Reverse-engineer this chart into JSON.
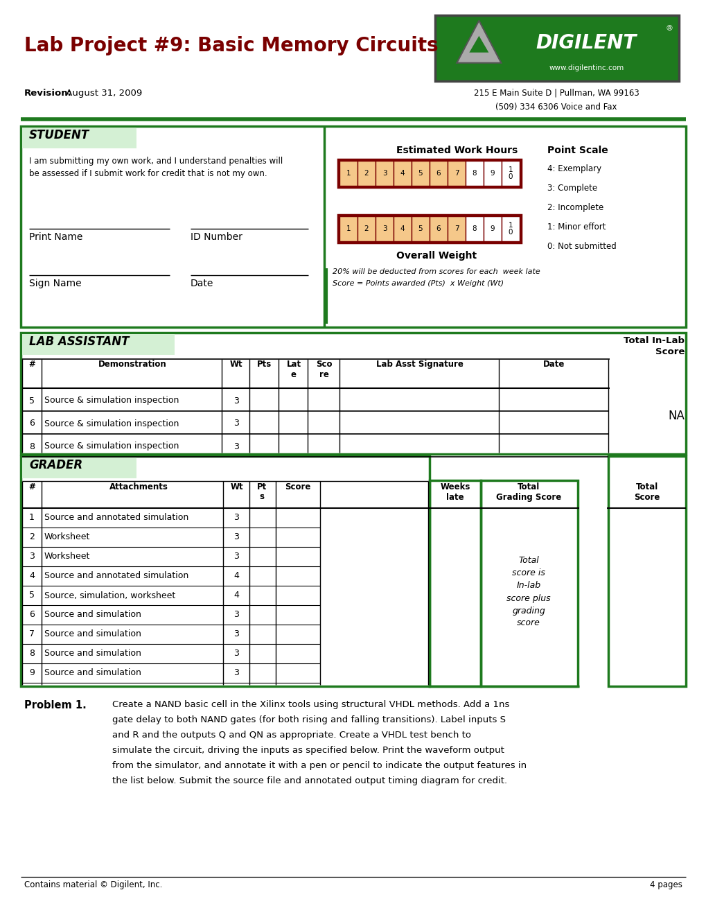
{
  "title": "Lab Project #9: Basic Memory Circuits",
  "revision_bold": "Revision:",
  "revision_rest": " August 31, 2009",
  "address_line1": "215 E Main Suite D | Pullman, WA 99163",
  "address_line2": "(509) 334 6306 Voice and Fax",
  "title_color": "#8B0000",
  "green_color": "#1e7a1e",
  "light_green_bg": "#d4f0d4",
  "orange_fill": "#f5c88a",
  "dark_red": "#7a0000",
  "student_text_line1": "I am submitting my own work, and I understand penalties will",
  "student_text_line2": "be assessed if I submit work for credit that is not my own.",
  "point_scale": [
    "4: Exemplary",
    "3: Complete",
    "2: Incomplete",
    "1: Minor effort",
    "0: Not submitted"
  ],
  "overall_weight_line1": "20% will be deducted from scores for each  week late",
  "overall_weight_line2": "Score = Points awarded (Pts)  x Weight (Wt)",
  "lab_rows": [
    {
      "num": "5",
      "demo": "Source & simulation inspection",
      "wt": "3"
    },
    {
      "num": "6",
      "demo": "Source & simulation inspection",
      "wt": "3"
    },
    {
      "num": "8",
      "demo": "Source & simulation inspection",
      "wt": "3"
    }
  ],
  "grader_rows": [
    {
      "num": "1",
      "attach": "Source and annotated simulation",
      "wt": "3"
    },
    {
      "num": "2",
      "attach": "Worksheet",
      "wt": "3"
    },
    {
      "num": "3",
      "attach": "Worksheet",
      "wt": "3"
    },
    {
      "num": "4",
      "attach": "Source and annotated simulation",
      "wt": "4"
    },
    {
      "num": "5",
      "attach": "Source, simulation, worksheet",
      "wt": "4"
    },
    {
      "num": "6",
      "attach": "Source and simulation",
      "wt": "3"
    },
    {
      "num": "7",
      "attach": "Source and simulation",
      "wt": "3"
    },
    {
      "num": "8",
      "attach": "Source and simulation",
      "wt": "3"
    },
    {
      "num": "9",
      "attach": "Source and simulation",
      "wt": "3"
    }
  ],
  "problem_text_lines": [
    "Create a NAND basic cell in the Xilinx tools using structural VHDL methods. Add a 1ns",
    "gate delay to both NAND gates (for both rising and falling transitions). Label inputs S",
    "and R and the outputs Q and QN as appropriate. Create a VHDL test bench to",
    "simulate the circuit, driving the inputs as specified below. Print the waveform output",
    "from the simulator, and annotate it with a pen or pencil to indicate the output features in",
    "the list below. Submit the source file and annotated output timing diagram for credit."
  ],
  "footer_left": "Contains material © Digilent, Inc.",
  "footer_right": "4 pages"
}
